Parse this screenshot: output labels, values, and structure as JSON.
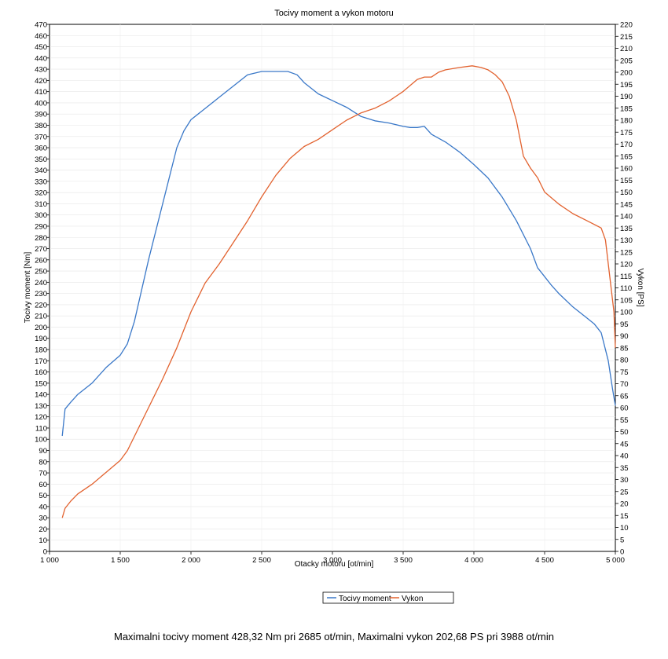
{
  "chart_data": {
    "type": "line",
    "title": "Tocivy moment a vykon motoru",
    "xlabel": "Otacky motoru [ot/min]",
    "ylabel": "Tocivy moment [Nm]",
    "y2label": "Vykon [PS]",
    "xlim": [
      1000,
      5000
    ],
    "ylim": [
      0,
      470
    ],
    "y2lim": [
      0,
      220
    ],
    "x_ticks": [
      1000,
      1500,
      2000,
      2500,
      3000,
      3500,
      4000,
      4500,
      5000
    ],
    "x_tick_labels": [
      "1 000",
      "1 500",
      "2 000",
      "2 500",
      "3 000",
      "3 500",
      "4 000",
      "4 500",
      "5 000"
    ],
    "y_tick_step": 10,
    "y2_tick_step": 5,
    "grid": true,
    "legend": "bottom-center",
    "series": [
      {
        "name": "Tocivy moment",
        "axis": "left",
        "color": "#3a78c8",
        "x": [
          1090,
          1110,
          1150,
          1200,
          1300,
          1400,
          1500,
          1550,
          1600,
          1700,
          1800,
          1900,
          1950,
          2000,
          2100,
          2200,
          2300,
          2400,
          2500,
          2600,
          2685,
          2750,
          2800,
          2900,
          3000,
          3100,
          3200,
          3300,
          3400,
          3500,
          3550,
          3600,
          3650,
          3700,
          3800,
          3900,
          4000,
          4100,
          4200,
          4300,
          4400,
          4450,
          4500,
          4550,
          4600,
          4700,
          4800,
          4850,
          4900,
          4950,
          4980,
          5000
        ],
        "y": [
          103,
          127,
          133,
          140,
          150,
          164,
          175,
          185,
          205,
          260,
          310,
          360,
          375,
          385,
          395,
          405,
          415,
          425,
          428,
          428,
          428,
          425,
          418,
          408,
          402,
          396,
          388,
          384,
          382,
          379,
          378,
          378,
          379,
          372,
          365,
          356,
          345,
          333,
          316,
          295,
          270,
          253,
          245,
          237,
          230,
          218,
          208,
          203,
          195,
          170,
          145,
          130
        ]
      },
      {
        "name": "Vykon",
        "axis": "right",
        "color": "#e2622f",
        "x": [
          1090,
          1110,
          1150,
          1200,
          1300,
          1400,
          1500,
          1550,
          1600,
          1700,
          1800,
          1900,
          2000,
          2100,
          2200,
          2300,
          2400,
          2500,
          2600,
          2700,
          2800,
          2900,
          3000,
          3100,
          3200,
          3300,
          3400,
          3500,
          3600,
          3650,
          3700,
          3750,
          3800,
          3900,
          3988,
          4050,
          4100,
          4150,
          4200,
          4250,
          4300,
          4350,
          4400,
          4450,
          4500,
          4600,
          4700,
          4800,
          4900,
          4930,
          4950,
          4970,
          4990,
          5000
        ],
        "y": [
          14,
          18,
          21,
          24,
          28,
          33,
          38,
          42,
          48,
          60,
          72,
          85,
          100,
          112,
          120,
          129,
          138,
          148,
          157,
          164,
          169,
          172,
          176,
          180,
          183,
          185,
          188,
          192,
          197,
          198,
          198,
          200,
          201,
          202,
          202.68,
          202,
          201,
          199,
          196,
          190,
          180,
          165,
          160,
          156,
          150,
          145,
          141,
          138,
          135,
          130,
          120,
          110,
          100,
          85
        ]
      }
    ]
  },
  "footer": {
    "summary": "Maximalni tocivy moment 428,32 Nm pri 2685 ot/min,  Maximalni vykon 202,68 PS pri 3988 ot/min"
  }
}
